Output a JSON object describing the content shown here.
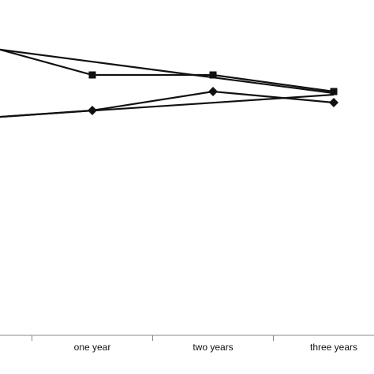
{
  "chart_data": {
    "type": "line",
    "categories": [
      null,
      "one year",
      "two years",
      "three years"
    ],
    "ylim": [
      0,
      100
    ],
    "series": [
      {
        "color": "#111111",
        "marker": "square",
        "values": [
          93,
          82.5,
          82.5,
          77.25
        ]
      },
      {
        "color": "#111111",
        "marker": "diamond",
        "values": [
          68.6,
          71.25,
          77.25,
          73.75
        ]
      },
      {
        "color": "#111111",
        "marker": "none",
        "values": [
          91.7,
          86.7,
          81.7,
          76.75
        ]
      },
      {
        "color": "#111111",
        "marker": "none",
        "values": [
          68.6,
          71.2,
          73.7,
          76.25
        ]
      }
    ]
  }
}
